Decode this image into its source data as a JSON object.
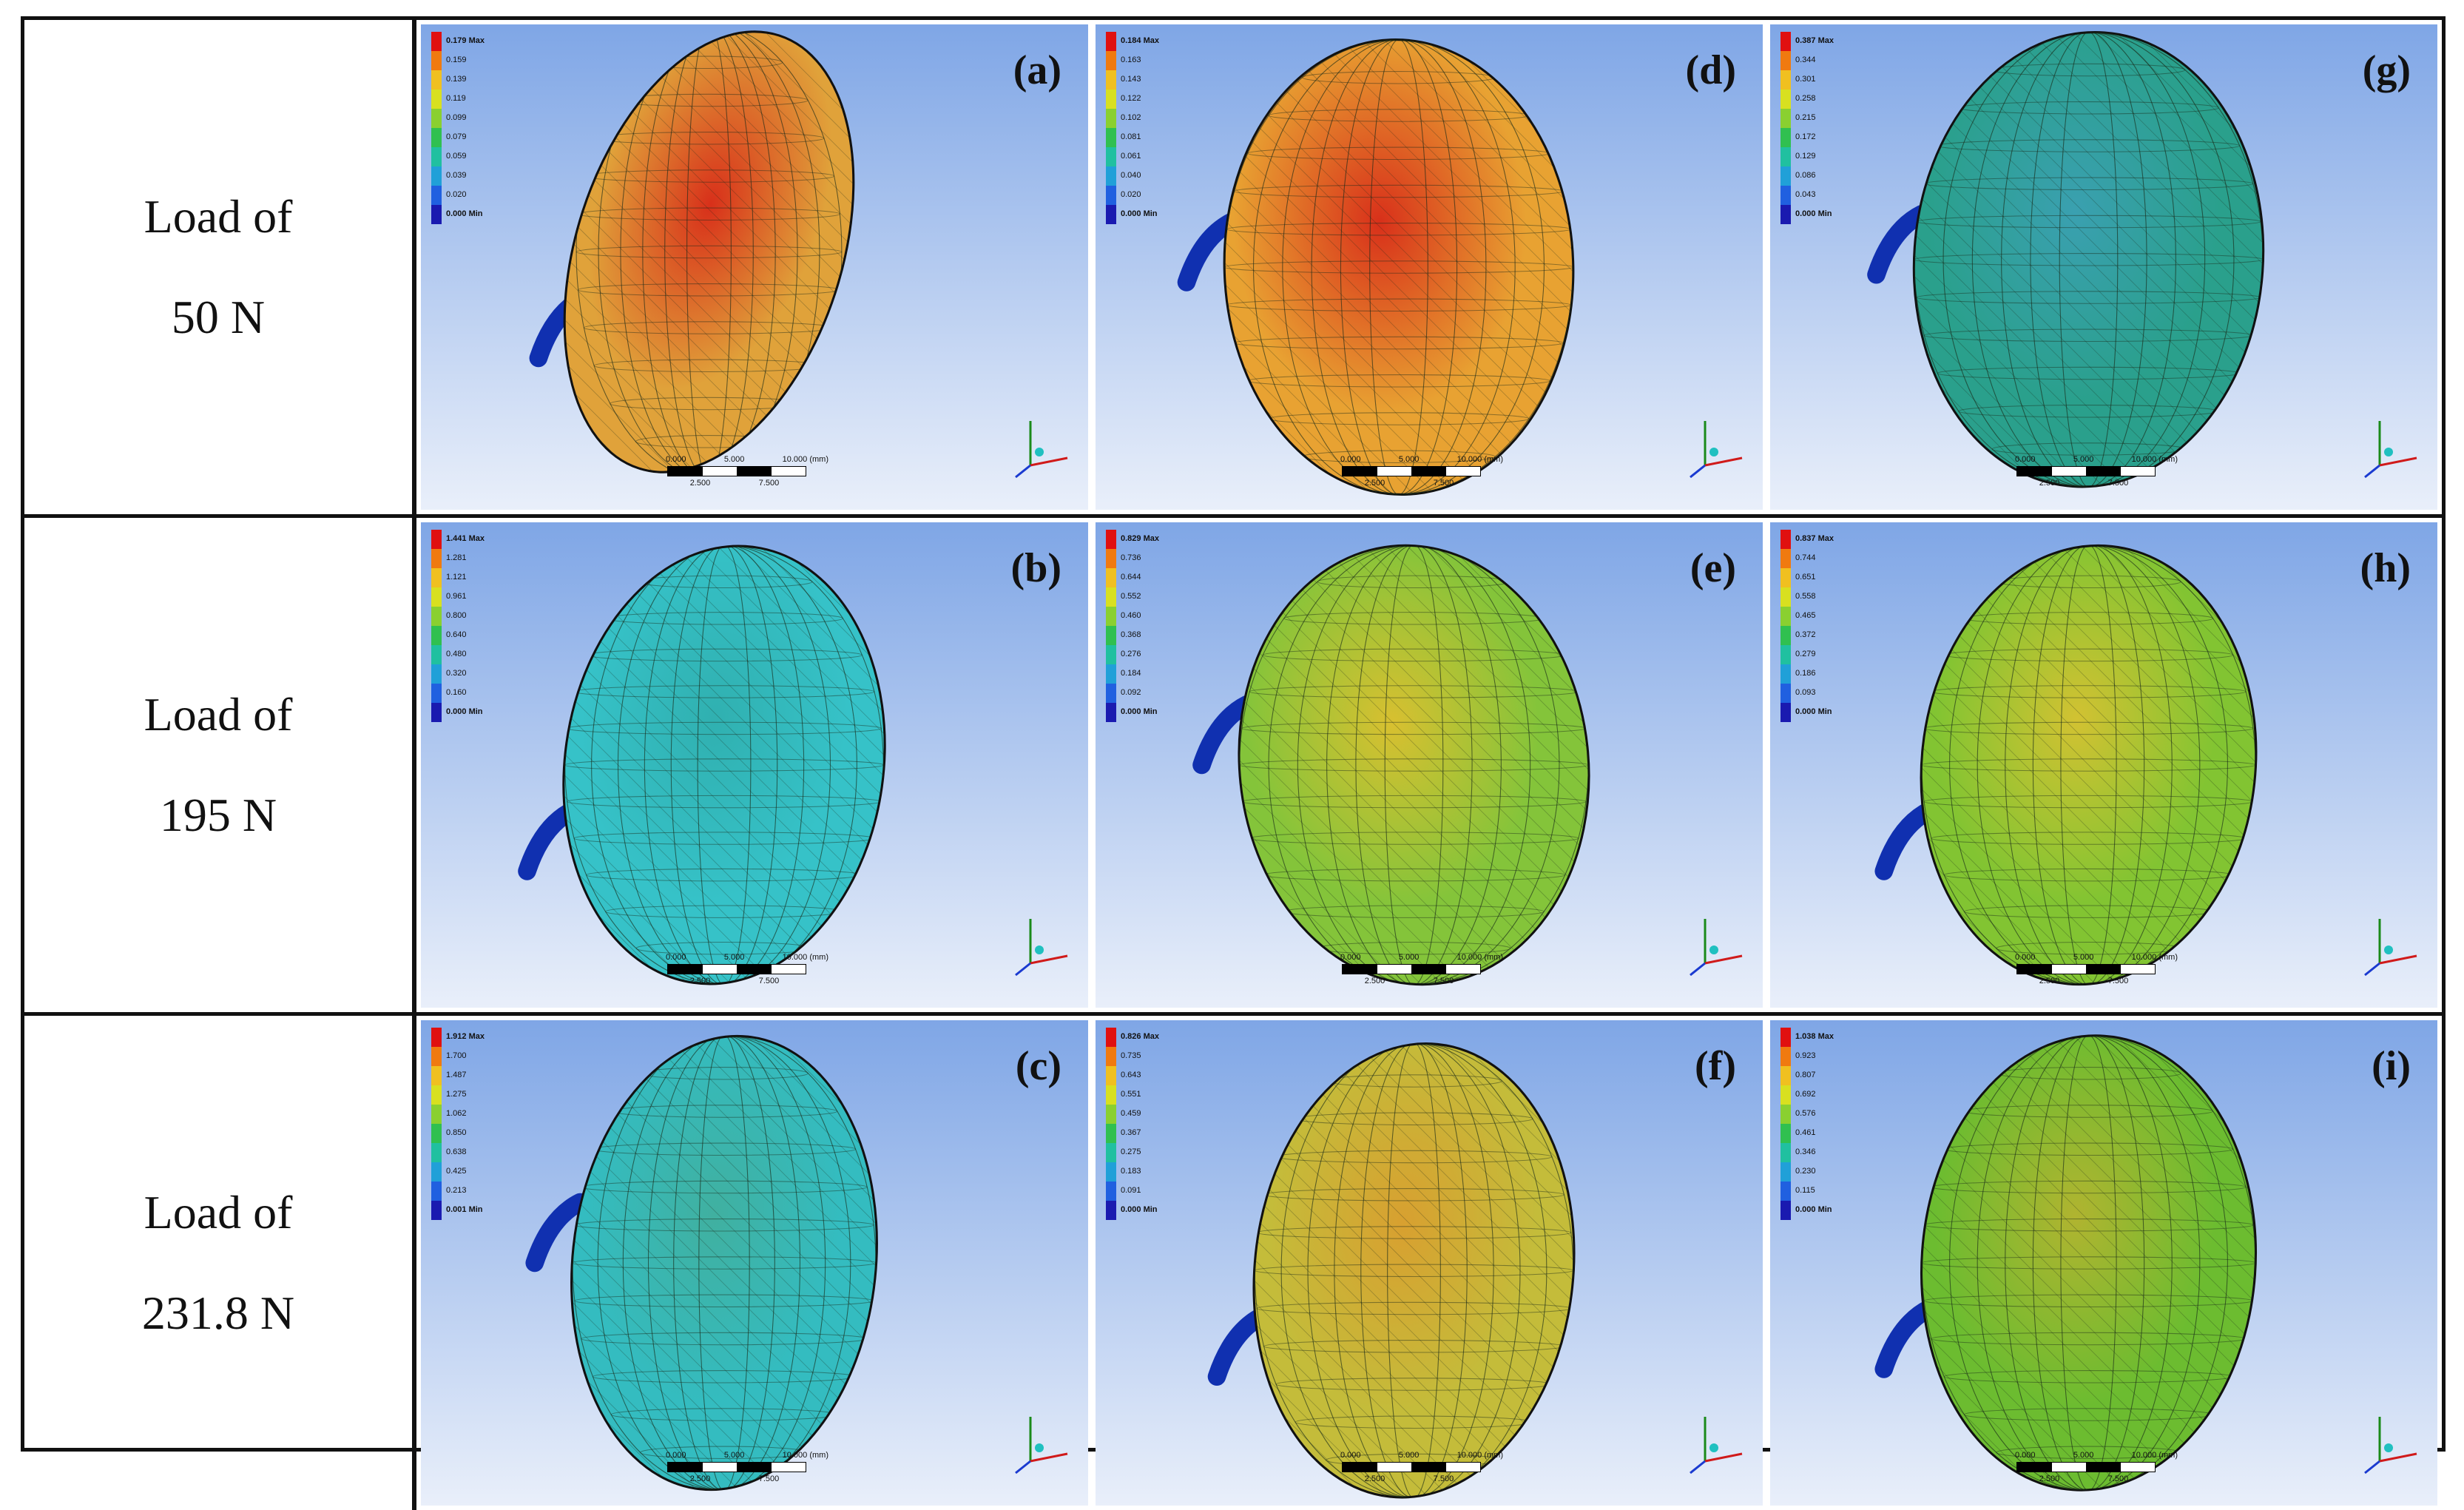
{
  "rows": [
    {
      "label_line1": "Load of",
      "label_line2": "50 N",
      "panels": [
        {
          "tag": "(a)",
          "legend": [
            "0.179 Max",
            "0.159",
            "0.139",
            "0.119",
            "0.099",
            "0.079",
            "0.059",
            "0.039",
            "0.020",
            "0.000 Min"
          ],
          "axes": "Y X Z"
        },
        {
          "tag": "(d)",
          "legend": [
            "0.184 Max",
            "0.163",
            "0.143",
            "0.122",
            "0.102",
            "0.081",
            "0.061",
            "0.040",
            "0.020",
            "0.000 Min"
          ],
          "axes": "X Z"
        },
        {
          "tag": "(g)",
          "legend": [
            "0.387 Max",
            "0.344",
            "0.301",
            "0.258",
            "0.215",
            "0.172",
            "0.129",
            "0.086",
            "0.043",
            "0.000 Min"
          ],
          "axes": "X Z"
        }
      ]
    },
    {
      "label_line1": "Load of",
      "label_line2": "195 N",
      "panels": [
        {
          "tag": "(b)",
          "legend": [
            "1.441 Max",
            "1.281",
            "1.121",
            "0.961",
            "0.800",
            "0.640",
            "0.480",
            "0.320",
            "0.160",
            "0.000 Min"
          ],
          "axes": "Y X"
        },
        {
          "tag": "(e)",
          "legend": [
            "0.829 Max",
            "0.736",
            "0.644",
            "0.552",
            "0.460",
            "0.368",
            "0.276",
            "0.184",
            "0.092",
            "0.000 Min"
          ],
          "axes": "Y X"
        },
        {
          "tag": "(h)",
          "legend": [
            "0.837 Max",
            "0.744",
            "0.651",
            "0.558",
            "0.465",
            "0.372",
            "0.279",
            "0.186",
            "0.093",
            "0.000 Min"
          ],
          "axes": "Y X"
        }
      ]
    },
    {
      "label_line1": "Load of",
      "label_line2": "231.8 N",
      "panels": [
        {
          "tag": "(c)",
          "legend": [
            "1.912 Max",
            "1.700",
            "1.487",
            "1.275",
            "1.062",
            "0.850",
            "0.638",
            "0.425",
            "0.213",
            "0.001 Min"
          ],
          "axes": "Y X"
        },
        {
          "tag": "(f)",
          "legend": [
            "0.826 Max",
            "0.735",
            "0.643",
            "0.551",
            "0.459",
            "0.367",
            "0.275",
            "0.183",
            "0.091",
            "0.000 Min"
          ],
          "axes": "X Y"
        },
        {
          "tag": "(i)",
          "legend": [
            "1.038 Max",
            "0.923",
            "0.807",
            "0.692",
            "0.576",
            "0.461",
            "0.346",
            "0.230",
            "0.115",
            "0.000 Min"
          ],
          "axes": "Y X"
        }
      ]
    }
  ],
  "scale_top": [
    "0.000",
    "5.000",
    "10.000 (mm)"
  ],
  "scale_bottom": [
    "2.500",
    "7.500"
  ],
  "legend_colors": [
    "#e01010",
    "#f07a10",
    "#f0c020",
    "#d8e020",
    "#8ad030",
    "#30c050",
    "#20c0a0",
    "#20a0d8",
    "#2060e0",
    "#1a1ab0"
  ],
  "colors": {
    "bg_top": "#7fa6e6",
    "bg_bottom": "#e9effa"
  }
}
